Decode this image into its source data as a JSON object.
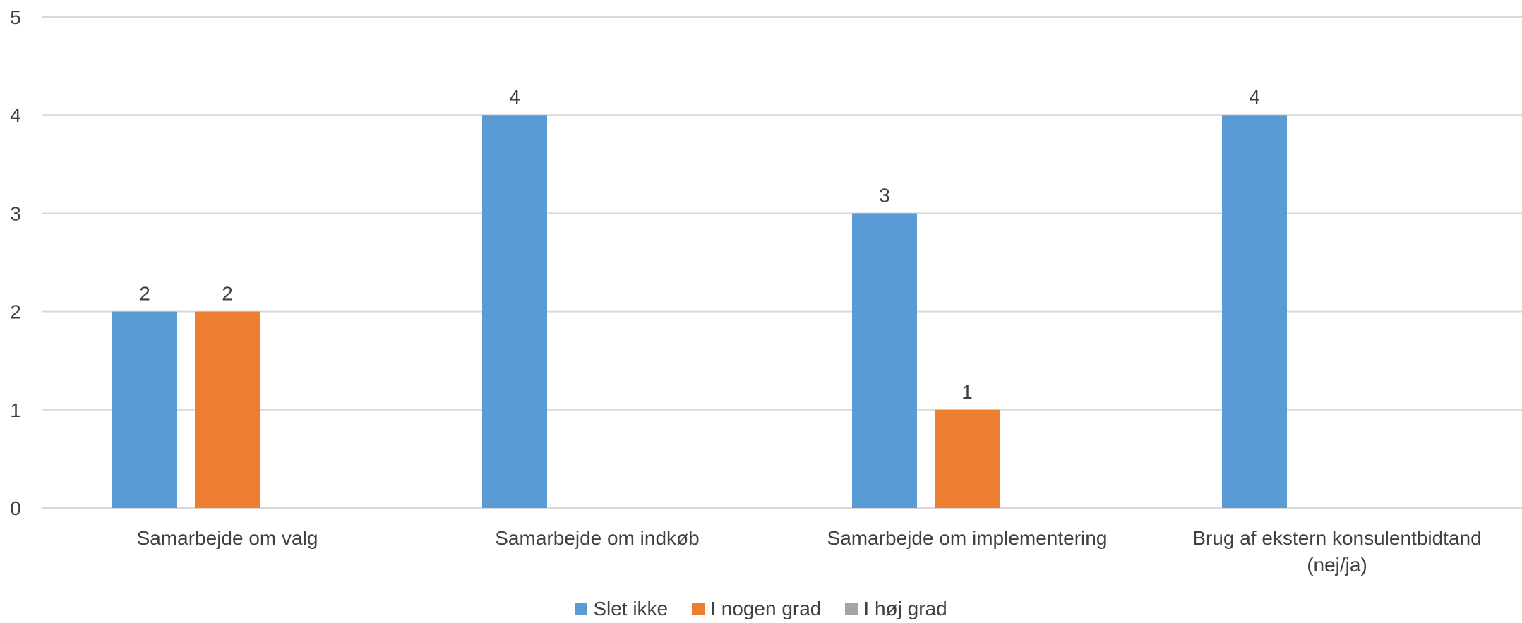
{
  "chart_data": {
    "type": "bar",
    "categories": [
      [
        "Samarbejde om valg"
      ],
      [
        "Samarbejde om indkøb"
      ],
      [
        "Samarbejde om implementering"
      ],
      [
        "Brug af ekstern konsulentbidtand",
        "(nej/ja)"
      ]
    ],
    "series": [
      {
        "name": "Slet ikke",
        "color": "#5B9BD5",
        "values": [
          2,
          4,
          3,
          4
        ]
      },
      {
        "name": "I nogen grad",
        "color": "#ED7D31",
        "values": [
          2,
          0,
          1,
          0
        ]
      },
      {
        "name": "I høj grad",
        "color": "#A5A5A5",
        "values": [
          0,
          0,
          0,
          0
        ]
      }
    ],
    "ylim": [
      0,
      5
    ],
    "yticks": [
      "0",
      "1",
      "2",
      "3",
      "4",
      "5"
    ],
    "grid": true,
    "data_labels": true,
    "legend_position": "bottom"
  }
}
